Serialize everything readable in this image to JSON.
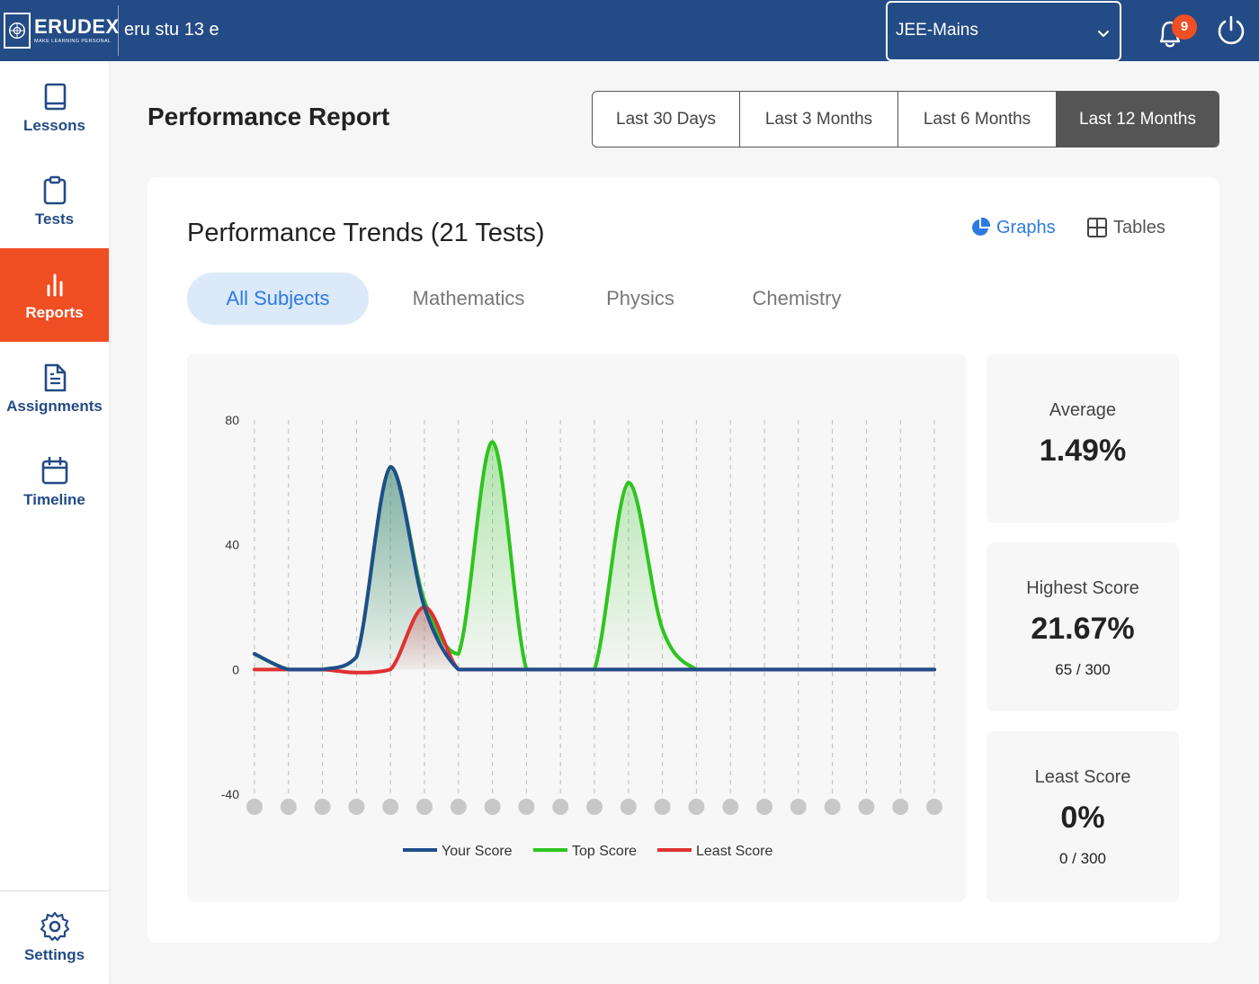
{
  "header": {
    "logo_name": "ERUDEX",
    "logo_tagline": "MAKE LEARNING PERSONAL",
    "user_name": "eru stu 13 e",
    "course": "JEE-Mains",
    "notification_count": "9"
  },
  "sidebar": {
    "items": [
      {
        "label": "Lessons",
        "icon": "book-icon"
      },
      {
        "label": "Tests",
        "icon": "clipboard-icon"
      },
      {
        "label": "Reports",
        "icon": "bar-chart-icon",
        "active": true
      },
      {
        "label": "Assignments",
        "icon": "document-icon"
      },
      {
        "label": "Timeline",
        "icon": "calendar-icon"
      }
    ],
    "settings_label": "Settings"
  },
  "page": {
    "title": "Performance Report",
    "ranges": [
      "Last 30 Days",
      "Last 3 Months",
      "Last 6 Months",
      "Last 12 Months"
    ],
    "active_range": "Last 12 Months"
  },
  "card": {
    "title": "Performance Trends (21 Tests)",
    "view_graphs": "Graphs",
    "view_tables": "Tables",
    "tabs": [
      "All Subjects",
      "Mathematics",
      "Physics",
      "Chemistry"
    ],
    "active_tab": "All Subjects"
  },
  "stats": {
    "average": {
      "label": "Average",
      "value": "1.49%"
    },
    "highest": {
      "label": "Highest Score",
      "value": "21.67%",
      "sub": "65 / 300"
    },
    "least": {
      "label": "Least Score",
      "value": "0%",
      "sub": "0 / 300"
    }
  },
  "colors": {
    "primary": "#234b86",
    "accent": "#f04e23",
    "your_score": "#1f4e8c",
    "top_score": "#2ec41f",
    "least_score": "#e03131",
    "active_tab": "#2d7ae0"
  },
  "chart_data": {
    "type": "line",
    "x": [
      1,
      2,
      3,
      4,
      5,
      6,
      7,
      8,
      9,
      10,
      11,
      12,
      13,
      14,
      15,
      16,
      17,
      18,
      19,
      20,
      21
    ],
    "ylim": [
      -40,
      80
    ],
    "yticks": [
      "80",
      "40",
      "0",
      "-40"
    ],
    "grid": "vertical dashed",
    "legend_position": "bottom",
    "series": [
      {
        "name": "Your Score",
        "values": [
          5,
          0,
          0,
          4,
          65,
          20,
          0,
          0,
          0,
          0,
          0,
          0,
          0,
          0,
          0,
          0,
          0,
          0,
          0,
          0,
          0
        ]
      },
      {
        "name": "Top Score",
        "values": [
          5,
          0,
          0,
          4,
          65,
          22,
          5,
          73,
          0,
          0,
          0,
          60,
          13,
          0,
          0,
          0,
          0,
          0,
          0,
          0,
          0
        ]
      },
      {
        "name": "Least Score",
        "values": [
          0,
          0,
          0,
          -1,
          0,
          20,
          0,
          0,
          0,
          0,
          0,
          0,
          0,
          0,
          0,
          0,
          0,
          0,
          0,
          0,
          0
        ]
      }
    ]
  }
}
